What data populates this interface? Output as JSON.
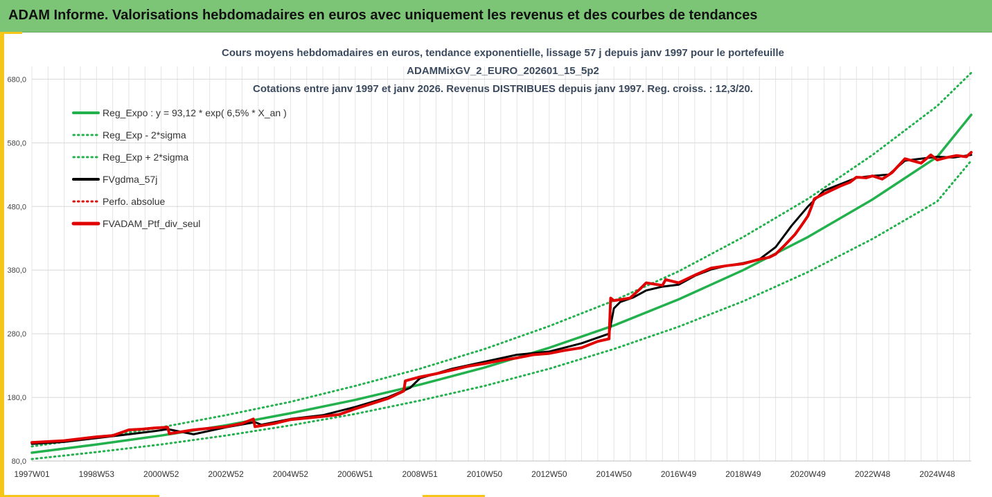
{
  "banner": {
    "title": "ADAM Informe. Valorisations hebdomadaires en euros avec uniquement les revenus et des courbes de tendances"
  },
  "colors": {
    "banner_bg": "#7cc576",
    "accent": "#f5c518",
    "trend": "#22b14c",
    "smoothed": "#000000",
    "perf": "#e00000"
  },
  "chart_data": {
    "type": "line",
    "title": [
      "Cours moyens hebdomadaires  en euros, tendance exponentielle, lissage 57 j depuis janv 1997 pour le portefeuille",
      "ADAMMixGV_2_EURO_202601_15_5p2",
      "Cotations entre janv 1997 et janv 2026. Revenus DISTRIBUES depuis janv 1997. Reg. croiss. : 12,3/20."
    ],
    "xlabel": "",
    "ylabel": "",
    "ylim": [
      80,
      700
    ],
    "xlim": [
      1997.0,
      2026.05
    ],
    "y_ticks": [
      {
        "v": 80,
        "label": "80,0"
      },
      {
        "v": 180,
        "label": "180,0"
      },
      {
        "v": 280,
        "label": "280,0"
      },
      {
        "v": 380,
        "label": "380,0"
      },
      {
        "v": 480,
        "label": "480,0"
      },
      {
        "v": 580,
        "label": "580,0"
      },
      {
        "v": 680,
        "label": "680,0"
      }
    ],
    "x_ticks": [
      {
        "t": 1997.0,
        "label": "1997W01"
      },
      {
        "t": 1999.0,
        "label": "1998W53"
      },
      {
        "t": 2001.0,
        "label": "2000W52"
      },
      {
        "t": 2003.0,
        "label": "2002W52"
      },
      {
        "t": 2005.0,
        "label": "2004W52"
      },
      {
        "t": 2007.0,
        "label": "2006W51"
      },
      {
        "t": 2009.0,
        "label": "2008W51"
      },
      {
        "t": 2011.0,
        "label": "2010W50"
      },
      {
        "t": 2013.0,
        "label": "2012W50"
      },
      {
        "t": 2015.0,
        "label": "2014W50"
      },
      {
        "t": 2017.0,
        "label": "2016W49"
      },
      {
        "t": 2019.0,
        "label": "2018W49"
      },
      {
        "t": 2021.0,
        "label": "2020W49"
      },
      {
        "t": 2023.0,
        "label": "2022W48"
      },
      {
        "t": 2025.0,
        "label": "2024W48"
      }
    ],
    "legend": [
      {
        "label": "Reg_Expo : y = 93,12 * exp( 6,5% *  X_an )",
        "color": "#22b14c",
        "style": "solid",
        "width": 4
      },
      {
        "label": "Reg_Exp - 2*sigma",
        "color": "#22b14c",
        "style": "dotted",
        "width": 3
      },
      {
        "label": "Reg_Exp + 2*sigma",
        "color": "#22b14c",
        "style": "dotted",
        "width": 3
      },
      {
        "label": "FVgdma_57j",
        "color": "#000000",
        "style": "solid",
        "width": 4
      },
      {
        "label": "Perfo. absolue",
        "color": "#e00000",
        "style": "dotted",
        "width": 3
      },
      {
        "label": "FVADAM_Ptf_div_seul",
        "color": "#e00000",
        "style": "solid",
        "width": 5
      }
    ],
    "series": [
      {
        "name": "Reg_Expo",
        "color": "#22b14c",
        "style": "solid",
        "width": 3.5,
        "x": [
          1997,
          1999,
          2001,
          2003,
          2005,
          2007,
          2009,
          2011,
          2013,
          2015,
          2017,
          2019,
          2021,
          2023,
          2025,
          2026.05
        ],
        "y": [
          93,
          106,
          120,
          136,
          155,
          176,
          200,
          227,
          258,
          293,
          334,
          380,
          432,
          491,
          558,
          624
        ]
      },
      {
        "name": "Reg_Exp - 2*sigma",
        "color": "#22b14c",
        "style": "dotted",
        "width": 3,
        "x": [
          1997,
          1999,
          2001,
          2003,
          2005,
          2007,
          2009,
          2011,
          2013,
          2015,
          2017,
          2019,
          2021,
          2023,
          2025,
          2026.05
        ],
        "y": [
          83,
          94,
          106,
          120,
          136,
          154,
          175,
          198,
          225,
          256,
          291,
          331,
          377,
          429,
          488,
          552
        ]
      },
      {
        "name": "Reg_Exp + 2*sigma",
        "color": "#22b14c",
        "style": "dotted",
        "width": 3,
        "x": [
          1997,
          1999,
          2001,
          2003,
          2005,
          2007,
          2009,
          2011,
          2013,
          2015,
          2017,
          2019,
          2021,
          2023,
          2025,
          2026.05
        ],
        "y": [
          103,
          117,
          133,
          152,
          173,
          198,
          225,
          256,
          292,
          332,
          378,
          432,
          492,
          561,
          638,
          690
        ]
      },
      {
        "name": "FVgdma_57j",
        "color": "#000000",
        "style": "solid",
        "width": 3,
        "x": [
          1997,
          1998,
          1999,
          2000,
          2000.8,
          2001.2,
          2002,
          2003,
          2003.9,
          2004.1,
          2005,
          2006,
          2007,
          2008,
          2008.7,
          2009,
          2010,
          2011,
          2012,
          2013,
          2014,
          2014.85,
          2015.0,
          2015.2,
          2015.6,
          2016,
          2016.5,
          2017,
          2017.5,
          2018,
          2018.5,
          2019,
          2019.5,
          2020,
          2020.5,
          2021,
          2021.5,
          2022,
          2022.5,
          2023,
          2023.5,
          2024,
          2024.5,
          2025,
          2025.5,
          2026.05
        ],
        "y": [
          107,
          110,
          116,
          122,
          127,
          130,
          122,
          133,
          141,
          137,
          146,
          152,
          165,
          180,
          195,
          210,
          225,
          236,
          247,
          252,
          265,
          280,
          320,
          330,
          337,
          348,
          354,
          357,
          371,
          381,
          387,
          391,
          397,
          416,
          450,
          480,
          505,
          515,
          525,
          528,
          530,
          552,
          555,
          558,
          557,
          561
        ]
      },
      {
        "name": "FVADAM_Ptf_div_seul",
        "color": "#e00000",
        "style": "solid",
        "width": 4,
        "x": [
          1997,
          1998,
          1999,
          1999.5,
          2000,
          2000.4,
          2000.8,
          2001.2,
          2001.25,
          2002,
          2003,
          2003.5,
          2003.85,
          2003.9,
          2004.5,
          2005,
          2006,
          2006.5,
          2007,
          2007.5,
          2008,
          2008.5,
          2008.55,
          2009,
          2009.5,
          2010,
          2010.5,
          2011,
          2011.5,
          2012,
          2012.5,
          2013,
          2013.5,
          2014,
          2014.5,
          2014.85,
          2014.9,
          2015.0,
          2015.5,
          2015.8,
          2016,
          2016.5,
          2016.6,
          2017,
          2017.5,
          2018,
          2018.5,
          2019,
          2019.5,
          2019.8,
          2020,
          2020.3,
          2020.6,
          2020.8,
          2021,
          2021.1,
          2021.2,
          2021.5,
          2022,
          2022.3,
          2022.5,
          2022.8,
          2023,
          2023.3,
          2023.6,
          2024,
          2024.5,
          2024.8,
          2025,
          2025.3,
          2025.6,
          2025.9,
          2026.05
        ],
        "y": [
          109,
          112,
          118,
          120,
          129,
          130,
          132,
          133,
          123,
          129,
          134,
          139,
          146,
          134,
          139,
          145,
          150,
          153,
          162,
          170,
          178,
          190,
          206,
          212,
          217,
          223,
          229,
          233,
          238,
          242,
          247,
          249,
          254,
          258,
          268,
          272,
          336,
          332,
          336,
          350,
          360,
          356,
          365,
          360,
          372,
          383,
          387,
          390,
          397,
          400,
          405,
          420,
          436,
          450,
          465,
          478,
          492,
          500,
          512,
          518,
          526,
          525,
          528,
          523,
          533,
          555,
          548,
          561,
          553,
          557,
          560,
          558,
          565
        ]
      }
    ]
  }
}
